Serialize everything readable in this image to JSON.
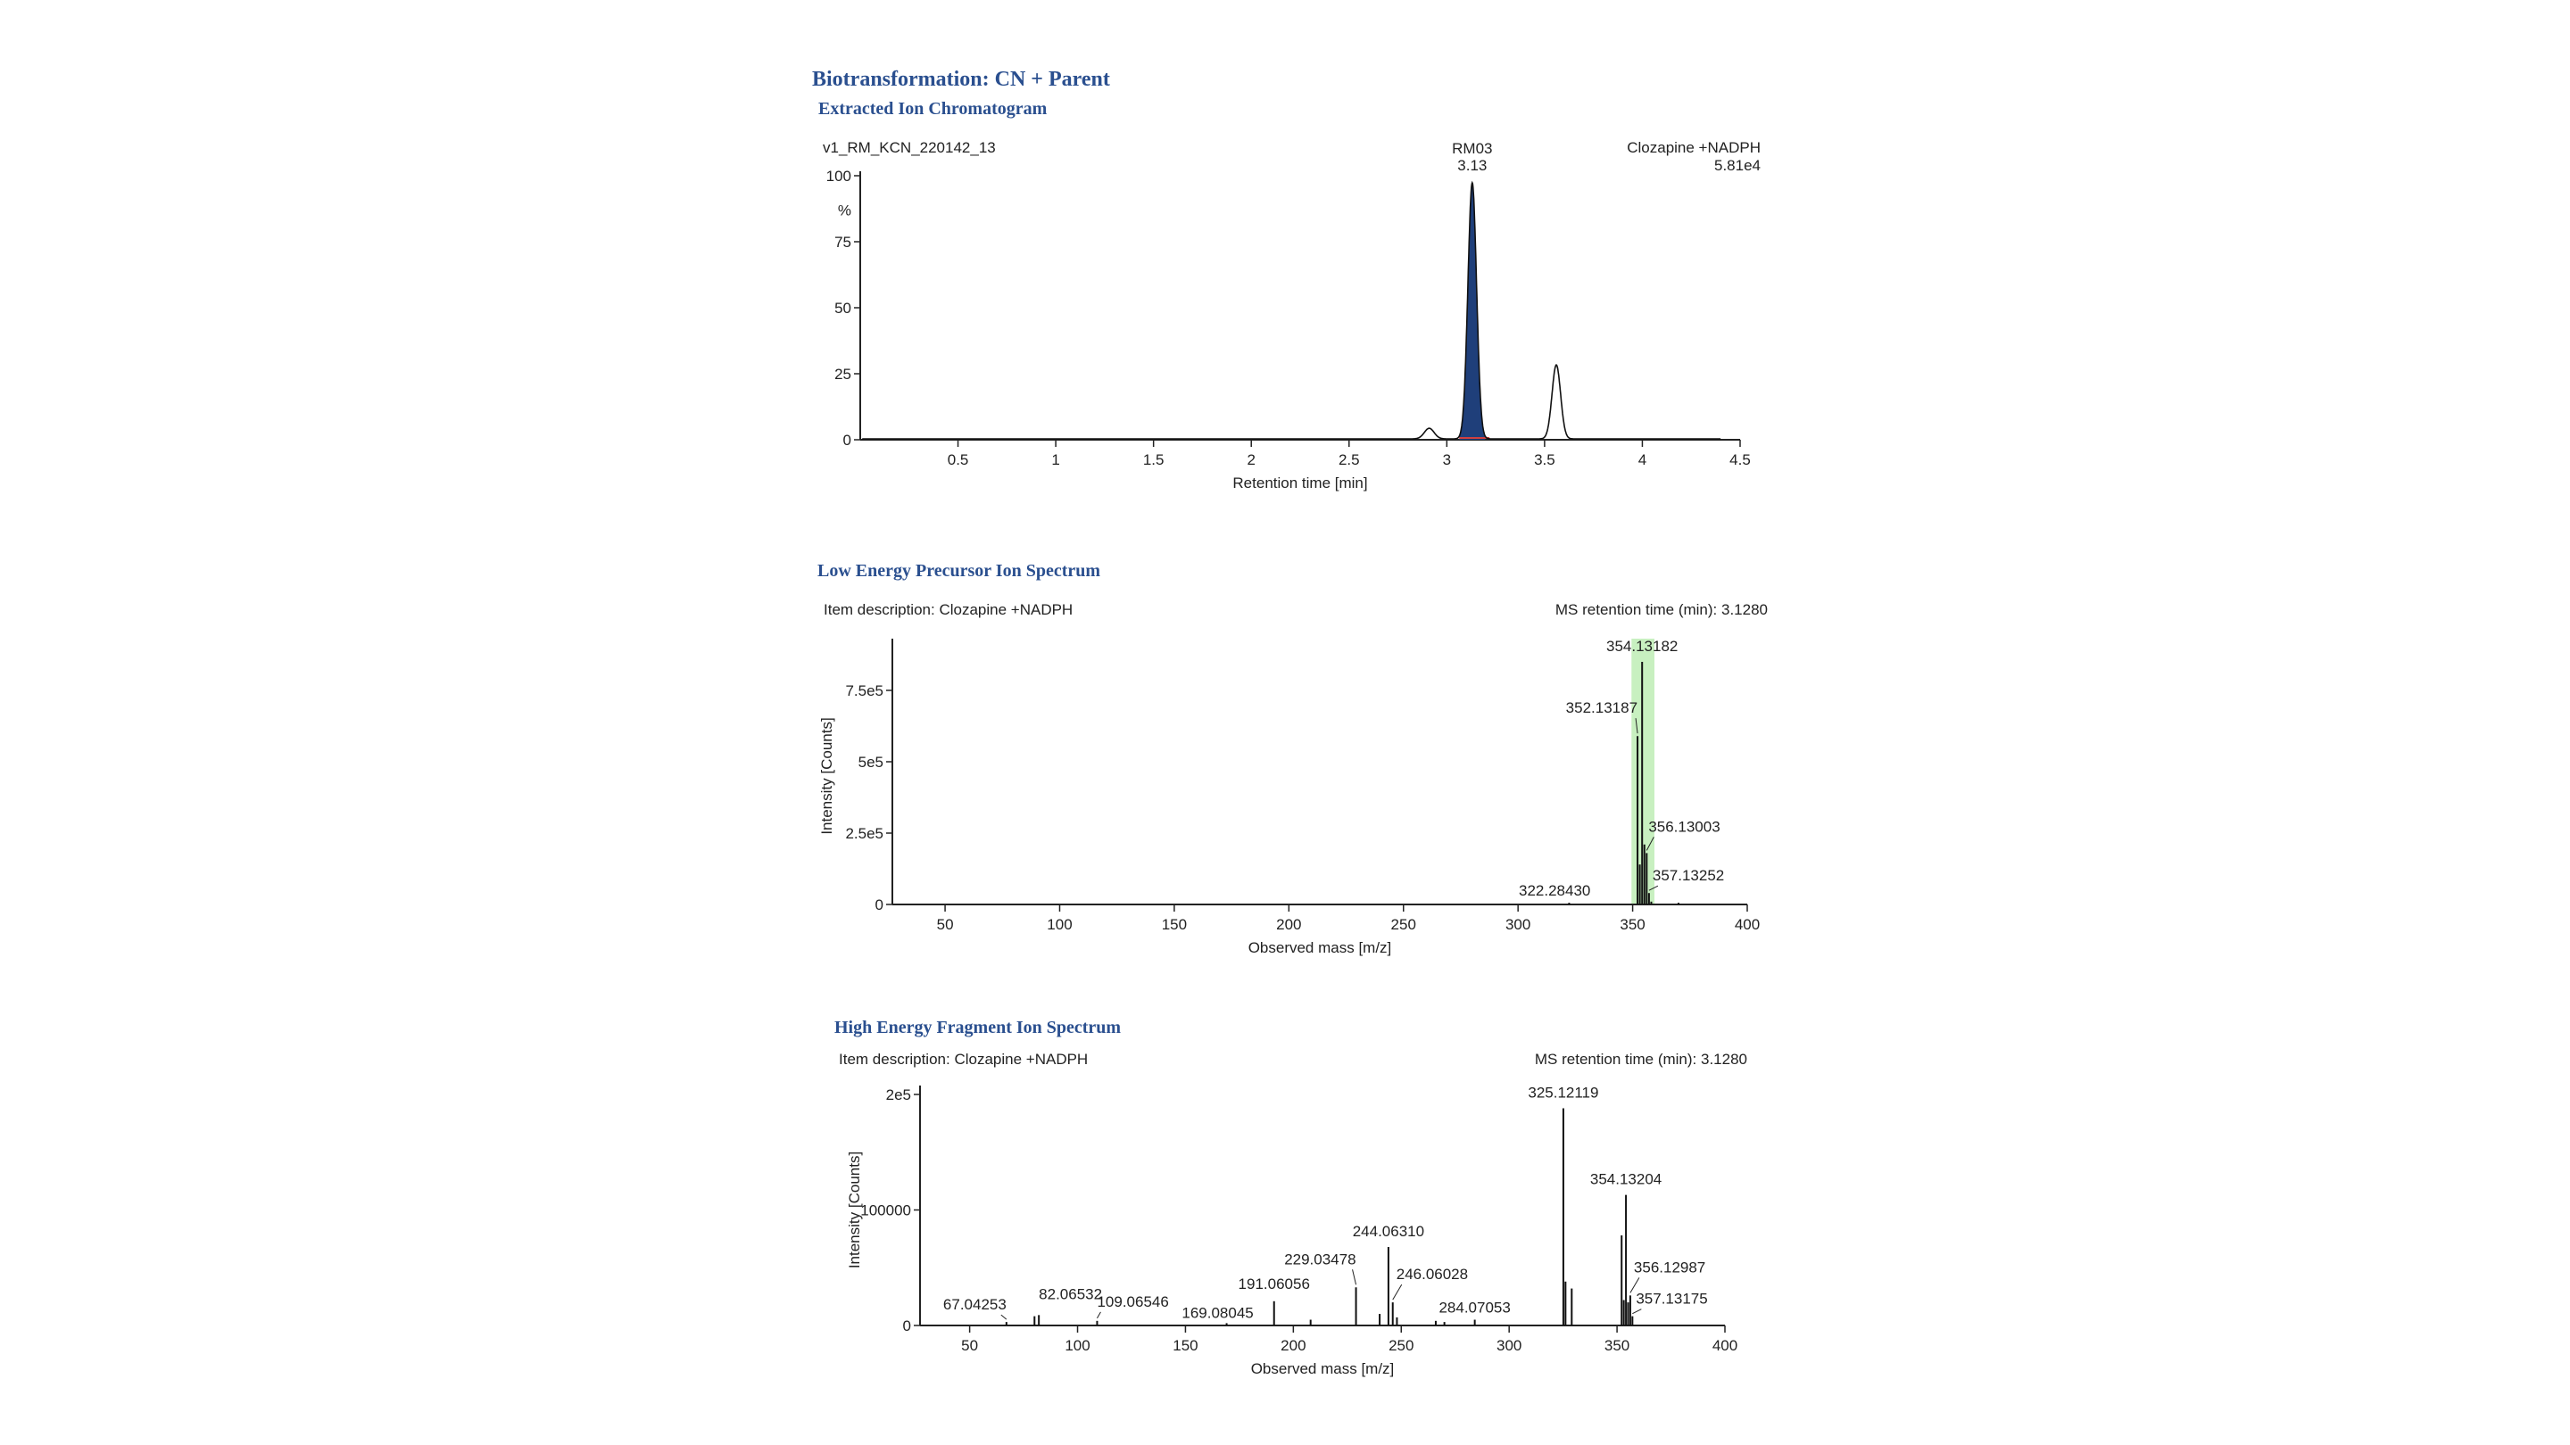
{
  "page": {
    "title": "Biotransformation:  CN + Parent",
    "sections": {
      "xic": "Extracted Ion Chromatogram",
      "low_energy": "Low Energy Precursor Ion Spectrum",
      "high_energy": "High Energy Fragment Ion Spectrum"
    }
  },
  "colors": {
    "peak_fill": "#1f3f7a",
    "highlight": "#c8f0c0",
    "baseline_marker": "#d04040",
    "line": "#111111"
  },
  "chart_data": [
    {
      "type": "line",
      "id": "xic",
      "header_left": "v1_RM_KCN_220142_13",
      "header_right_line1": "Clozapine +NADPH",
      "header_right_line2": "5.81e4",
      "xlabel": "Retention time [min]",
      "ylabel": "%",
      "xlim": [
        0,
        4.5
      ],
      "ylim": [
        0,
        100
      ],
      "xticks": [
        0.5,
        1,
        1.5,
        2,
        2.5,
        3,
        3.5,
        4,
        4.5
      ],
      "xtick_labels": [
        "0.5",
        "1",
        "1.5",
        "2",
        "2.5",
        "3",
        "3.5",
        "4",
        "4.5"
      ],
      "yticks": [
        0,
        25,
        50,
        75,
        100
      ],
      "ytick_labels": [
        "0",
        "25",
        "50",
        "75",
        "100"
      ],
      "peaks": [
        {
          "rt": 2.91,
          "height": 4,
          "width": 0.025
        },
        {
          "rt": 3.13,
          "height": 97,
          "width": 0.022,
          "filled": true,
          "label_line1": "RM03",
          "label_line2": "3.13"
        },
        {
          "rt": 3.56,
          "height": 28,
          "width": 0.022
        }
      ]
    },
    {
      "type": "bar",
      "id": "low_energy",
      "header_left": "Item description: Clozapine +NADPH",
      "header_right": "MS retention time (min): 3.1280",
      "xlabel": "Observed mass [m/z]",
      "ylabel": "Intensity [Counts]",
      "xlim": [
        27,
        400
      ],
      "ylim": [
        0,
        900000
      ],
      "xticks": [
        50,
        100,
        150,
        200,
        250,
        300,
        350,
        400
      ],
      "xtick_labels": [
        "50",
        "100",
        "150",
        "200",
        "250",
        "300",
        "350",
        "400"
      ],
      "yticks": [
        0,
        250000,
        500000,
        750000
      ],
      "ytick_labels": [
        "0",
        "2.5e5",
        "5e5",
        "7.5e5"
      ],
      "highlight_range": [
        349.5,
        359.5
      ],
      "peaks": [
        {
          "mz": 322.2843,
          "intensity": 6000,
          "label": "322.28430"
        },
        {
          "mz": 352.13187,
          "intensity": 590000,
          "label": "352.13187"
        },
        {
          "mz": 353.13,
          "intensity": 140000
        },
        {
          "mz": 354.13182,
          "intensity": 850000,
          "label": "354.13182"
        },
        {
          "mz": 355.13,
          "intensity": 210000
        },
        {
          "mz": 356.13003,
          "intensity": 180000,
          "label": "356.13003"
        },
        {
          "mz": 357.13252,
          "intensity": 40000,
          "label": "357.13252"
        },
        {
          "mz": 358.13,
          "intensity": 10000
        },
        {
          "mz": 370.0,
          "intensity": 6000
        }
      ]
    },
    {
      "type": "bar",
      "id": "high_energy",
      "header_left": "Item description: Clozapine +NADPH",
      "header_right": "MS retention time (min): 3.1280",
      "xlabel": "Observed mass [m/z]",
      "ylabel": "Intensity [Counts]",
      "xlim": [
        27,
        400
      ],
      "ylim": [
        0,
        200000
      ],
      "xticks": [
        50,
        100,
        150,
        200,
        250,
        300,
        350,
        400
      ],
      "xtick_labels": [
        "50",
        "100",
        "150",
        "200",
        "250",
        "300",
        "350",
        "400"
      ],
      "yticks": [
        0,
        100000,
        200000
      ],
      "ytick_labels": [
        "0",
        "100000",
        "2e5"
      ],
      "peaks": [
        {
          "mz": 67.04253,
          "intensity": 3000,
          "label": "67.04253"
        },
        {
          "mz": 80.05,
          "intensity": 8000
        },
        {
          "mz": 82.06532,
          "intensity": 9000,
          "label": "82.06532"
        },
        {
          "mz": 109.06546,
          "intensity": 4000,
          "label": "109.06546"
        },
        {
          "mz": 169.08045,
          "intensity": 2000,
          "label": "169.08045"
        },
        {
          "mz": 191.06056,
          "intensity": 21000,
          "label": "191.06056"
        },
        {
          "mz": 208.0,
          "intensity": 5000
        },
        {
          "mz": 229.03478,
          "intensity": 33000,
          "label": "229.03478"
        },
        {
          "mz": 240.0,
          "intensity": 10000
        },
        {
          "mz": 244.0631,
          "intensity": 68000,
          "label": "244.06310"
        },
        {
          "mz": 246.06028,
          "intensity": 20000,
          "label": "246.06028"
        },
        {
          "mz": 248.0,
          "intensity": 7000
        },
        {
          "mz": 266.0,
          "intensity": 4000
        },
        {
          "mz": 270.0,
          "intensity": 3000
        },
        {
          "mz": 284.07053,
          "intensity": 5000,
          "label": "284.07053"
        },
        {
          "mz": 325.12119,
          "intensity": 188000,
          "label": "325.12119"
        },
        {
          "mz": 326.12,
          "intensity": 38000
        },
        {
          "mz": 329.0,
          "intensity": 32000
        },
        {
          "mz": 352.13,
          "intensity": 78000
        },
        {
          "mz": 353.13,
          "intensity": 22000
        },
        {
          "mz": 354.13204,
          "intensity": 113000,
          "label": "354.13204"
        },
        {
          "mz": 355.13,
          "intensity": 20000
        },
        {
          "mz": 356.12987,
          "intensity": 26000,
          "label": "356.12987"
        },
        {
          "mz": 357.13175,
          "intensity": 8000,
          "label": "357.13175"
        }
      ]
    }
  ]
}
